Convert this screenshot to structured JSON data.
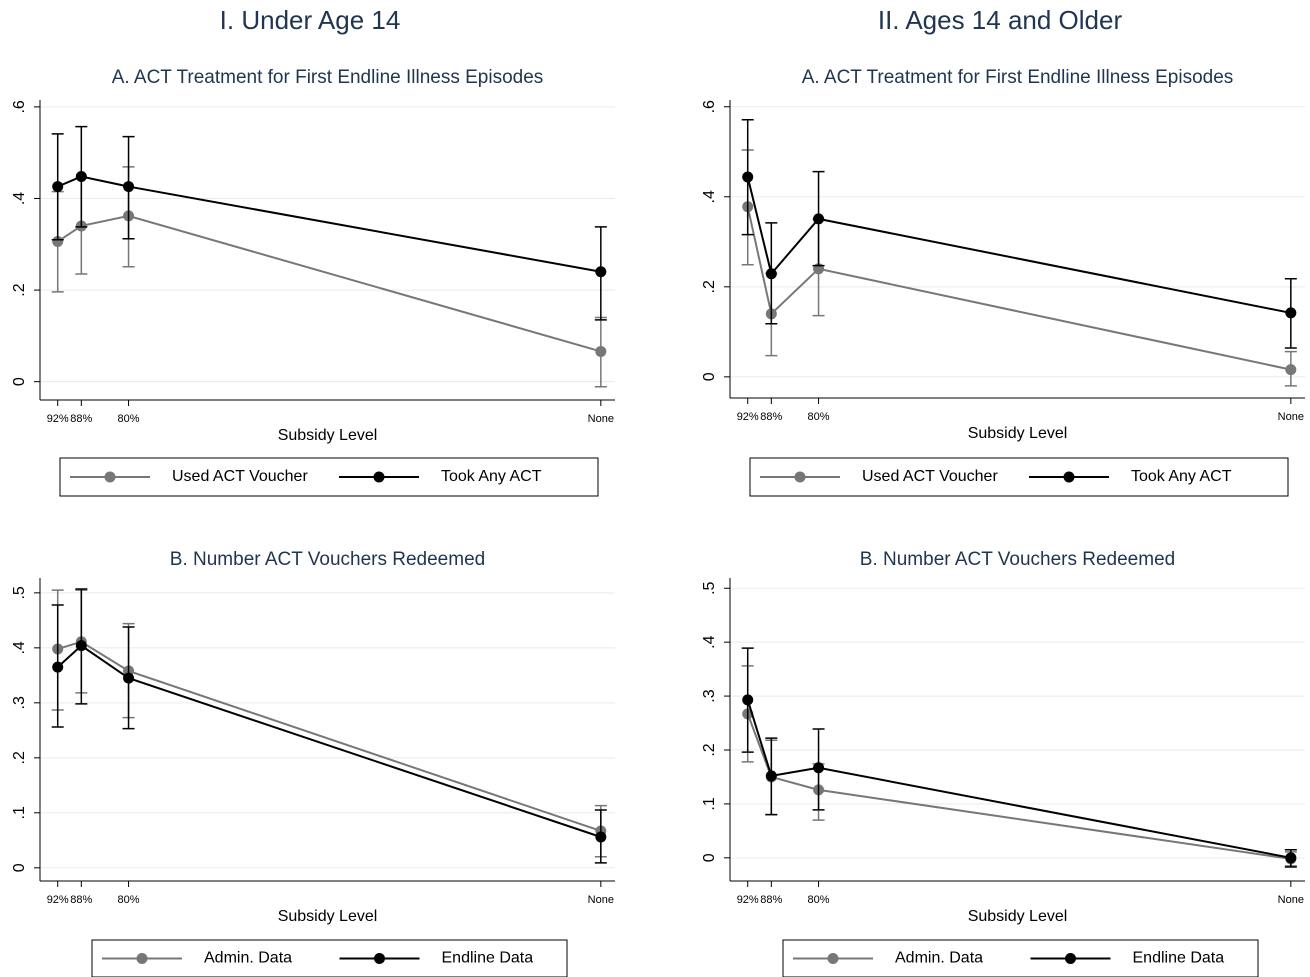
{
  "columns": [
    "I. Under Age 14",
    "II. Ages 14 and Older"
  ],
  "chart_data": [
    {
      "type": "line",
      "title": "A. ACT Treatment for First Endline Illness Episodes",
      "x_label": "Subsidy Level",
      "x": [
        92,
        88,
        80,
        0
      ],
      "xlim": [
        95,
        -2.4
      ],
      "xticks": [
        {
          "value": 92,
          "label": "92%"
        },
        {
          "value": 88,
          "label": "88%"
        },
        {
          "value": 80,
          "label": "80%"
        },
        {
          "value": 0,
          "label": "None"
        }
      ],
      "ylim": [
        -0.04,
        0.615
      ],
      "yticks": [
        0,
        {
          "value": 0.2,
          "label": ".2"
        },
        {
          "value": 0.4,
          "label": ".4"
        },
        {
          "value": 0.6,
          "label": ".6"
        }
      ],
      "grid": true,
      "series": [
        {
          "name": "Used ACT Voucher",
          "color": "#777777",
          "values": [
            0.306,
            0.34,
            0.362,
            0.066
          ],
          "lower": [
            0.196,
            0.235,
            0.251,
            -0.011
          ],
          "upper": [
            0.415,
            0.445,
            0.469,
            0.14
          ]
        },
        {
          "name": "Took Any ACT",
          "color": "#000000",
          "values": [
            0.426,
            0.448,
            0.426,
            0.24
          ],
          "lower": [
            0.31,
            0.338,
            0.312,
            0.135
          ],
          "upper": [
            0.541,
            0.557,
            0.535,
            0.338
          ]
        }
      ]
    },
    {
      "type": "line",
      "title": "A. ACT Treatment for First Endline Illness Episodes",
      "x_label": "Subsidy Level",
      "x": [
        92,
        88,
        80,
        0
      ],
      "xlim": [
        95,
        -2.4
      ],
      "xticks": [
        {
          "value": 92,
          "label": "92%"
        },
        {
          "value": 88,
          "label": "88%"
        },
        {
          "value": 80,
          "label": "80%"
        },
        {
          "value": 0,
          "label": "None"
        }
      ],
      "ylim": [
        -0.047,
        0.615
      ],
      "yticks": [
        0,
        {
          "value": 0.2,
          "label": ".2"
        },
        {
          "value": 0.4,
          "label": ".4"
        },
        {
          "value": 0.6,
          "label": ".6"
        }
      ],
      "grid": true,
      "series": [
        {
          "name": "Used ACT Voucher",
          "color": "#777777",
          "values": [
            0.378,
            0.14,
            0.24,
            0.016
          ],
          "lower": [
            0.249,
            0.047,
            0.136,
            -0.02
          ],
          "upper": [
            0.504,
            0.23,
            0.35,
            0.056
          ]
        },
        {
          "name": "Took Any ACT",
          "color": "#000000",
          "values": [
            0.444,
            0.229,
            0.351,
            0.142
          ],
          "lower": [
            0.316,
            0.118,
            0.247,
            0.064
          ],
          "upper": [
            0.571,
            0.342,
            0.456,
            0.218
          ]
        }
      ]
    },
    {
      "type": "line",
      "title": "B. Number ACT Vouchers Redeemed",
      "x_label": "Subsidy Level",
      "x": [
        92,
        88,
        80,
        0
      ],
      "xlim": [
        95,
        -2.4
      ],
      "xticks": [
        {
          "value": 92,
          "label": "92%"
        },
        {
          "value": 88,
          "label": "88%"
        },
        {
          "value": 80,
          "label": "80%"
        },
        {
          "value": 0,
          "label": "None"
        }
      ],
      "ylim": [
        -0.024,
        0.527
      ],
      "yticks": [
        0,
        {
          "value": 0.1,
          "label": ".1"
        },
        {
          "value": 0.2,
          "label": ".2"
        },
        {
          "value": 0.3,
          "label": ".3"
        },
        {
          "value": 0.4,
          "label": ".4"
        },
        {
          "value": 0.5,
          "label": ".5"
        }
      ],
      "grid": true,
      "series": [
        {
          "name": "Admin. Data",
          "color": "#777777",
          "values": [
            0.398,
            0.411,
            0.358,
            0.067
          ],
          "lower": [
            0.287,
            0.318,
            0.273,
            0.02
          ],
          "upper": [
            0.505,
            0.505,
            0.444,
            0.113
          ]
        },
        {
          "name": "Endline Data",
          "color": "#000000",
          "values": [
            0.365,
            0.404,
            0.345,
            0.056
          ],
          "lower": [
            0.256,
            0.298,
            0.253,
            0.009
          ],
          "upper": [
            0.478,
            0.507,
            0.438,
            0.105
          ]
        }
      ]
    },
    {
      "type": "line",
      "title": "B. Number ACT Vouchers Redeemed",
      "x_label": "Subsidy Level",
      "x": [
        92,
        88,
        80,
        0
      ],
      "xlim": [
        95,
        -2.4
      ],
      "xticks": [
        {
          "value": 92,
          "label": "92%"
        },
        {
          "value": 88,
          "label": "88%"
        },
        {
          "value": 80,
          "label": "80%"
        },
        {
          "value": 0,
          "label": "None"
        }
      ],
      "ylim": [
        -0.043,
        0.519
      ],
      "yticks": [
        0,
        {
          "value": 0.1,
          "label": ".1"
        },
        {
          "value": 0.2,
          "label": ".2"
        },
        {
          "value": 0.3,
          "label": ".3"
        },
        {
          "value": 0.4,
          "label": ".4"
        },
        {
          "value": 0.5,
          "label": ".5"
        }
      ],
      "grid": true,
      "series": [
        {
          "name": "Admin. Data",
          "color": "#777777",
          "values": [
            0.267,
            0.15,
            0.126,
            -0.002
          ],
          "lower": [
            0.178,
            0.08,
            0.07,
            -0.015
          ],
          "upper": [
            0.356,
            0.218,
            0.174,
            0.011
          ]
        },
        {
          "name": "Endline Data",
          "color": "#000000",
          "values": [
            0.293,
            0.152,
            0.167,
            0
          ],
          "lower": [
            0.196,
            0.08,
            0.089,
            -0.017
          ],
          "upper": [
            0.389,
            0.222,
            0.239,
            0.015
          ]
        }
      ]
    }
  ]
}
